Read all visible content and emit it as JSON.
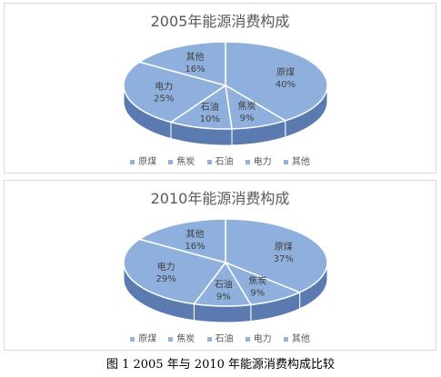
{
  "colors": {
    "face": "#8fb0dc",
    "side": "#5b7bb0",
    "edge": "#ffffff"
  },
  "legend_labels": [
    "原煤",
    "焦炭",
    "石油",
    "电力",
    "其他"
  ],
  "caption": "图 1   2005 年与 2010 年能源消费构成比较",
  "chart_data": [
    {
      "type": "pie",
      "title": "2005年能源消费构成",
      "categories": [
        "原煤",
        "焦炭",
        "石油",
        "电力",
        "其他"
      ],
      "values": [
        40,
        9,
        10,
        25,
        16
      ],
      "labels": [
        "原煤\n40%",
        "焦炭\n9%",
        "石油\n10%",
        "电力\n25%",
        "其他\n16%"
      ],
      "legend": "bottom"
    },
    {
      "type": "pie",
      "title": "2010年能源消费构成",
      "categories": [
        "原煤",
        "焦炭",
        "石油",
        "电力",
        "其他"
      ],
      "values": [
        37,
        9,
        9,
        29,
        16
      ],
      "labels": [
        "原煤\n37%",
        "焦炭\n9%",
        "石油\n9%",
        "电力\n29%",
        "其他\n16%"
      ],
      "legend": "bottom"
    }
  ]
}
